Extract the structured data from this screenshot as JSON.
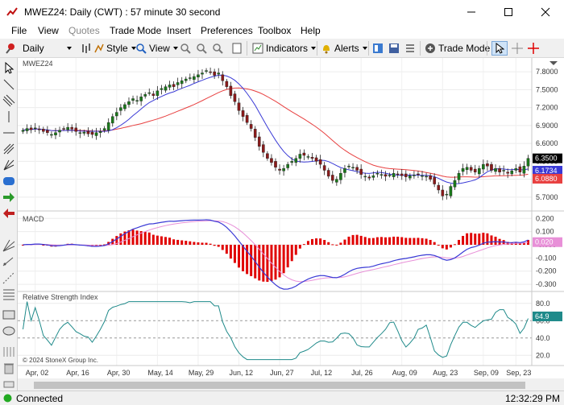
{
  "window": {
    "title": "MWEZ24: Daily (CWT) : 57 minute 30 second",
    "minimize": "—",
    "maximize": "☐",
    "close": "✕"
  },
  "menu": [
    "File",
    "View",
    "Quotes",
    "Trade Mode",
    "Insert",
    "Preferences",
    "Toolbox",
    "Help"
  ],
  "toolbar": {
    "period": "Daily",
    "style": "Style",
    "view": "View",
    "indicators": "Indicators",
    "alerts": "Alerts",
    "trade_mode": "Trade Mode"
  },
  "chart": {
    "symbol_label": "MWEZ24",
    "copyright": "© 2024 StoneX Group Inc.",
    "price_ticks": [
      "7.8000",
      "7.5000",
      "7.2000",
      "6.9000",
      "6.6000",
      "6.3000",
      "6.0000",
      "5.7000"
    ],
    "last_price": "6.3500",
    "ma_fast_value": "6.1734",
    "ma_slow_value": "6.0880",
    "macd_label": "MACD",
    "macd_ticks": [
      "0.200",
      "0.100",
      "-0.000",
      "-0.100",
      "-0.200",
      "-0.300"
    ],
    "macd_value": "0.020",
    "rsi_label": "Relative Strength Index",
    "rsi_ticks": [
      "80.0",
      "60.0",
      "40.0",
      "20.0"
    ],
    "rsi_value": "64.9",
    "date_labels": [
      "Apr, 02",
      "Apr, 16",
      "Apr, 30",
      "May, 14",
      "May, 29",
      "Jun, 12",
      "Jun, 27",
      "Jul, 12",
      "Jul, 26",
      "Aug, 09",
      "Aug, 23",
      "Sep, 09",
      "Sep, 23"
    ],
    "colors": {
      "up": "#1a7a1a",
      "down": "#8b1a1a",
      "ma_fast": "#3a3ad6",
      "ma_slow": "#e84040",
      "macd_line": "#3a3ad6",
      "macd_signal": "#e890d8",
      "macd_hist": "#e00000",
      "rsi": "#1f8a8a",
      "last_tag": "#000000"
    }
  },
  "chart_data": {
    "type": "candlestick",
    "closes": [
      6.82,
      6.85,
      6.83,
      6.86,
      6.84,
      6.8,
      6.78,
      6.75,
      6.78,
      6.82,
      6.85,
      6.87,
      6.84,
      6.8,
      6.78,
      6.79,
      6.76,
      6.75,
      6.78,
      6.8,
      6.85,
      6.95,
      7.05,
      7.12,
      7.2,
      7.25,
      7.3,
      7.35,
      7.32,
      7.38,
      7.42,
      7.45,
      7.4,
      7.48,
      7.52,
      7.55,
      7.58,
      7.55,
      7.62,
      7.65,
      7.68,
      7.7,
      7.72,
      7.75,
      7.78,
      7.82,
      7.8,
      7.74,
      7.78,
      7.65,
      7.55,
      7.4,
      7.3,
      7.15,
      7.05,
      6.95,
      6.85,
      6.7,
      6.55,
      6.45,
      6.35,
      6.28,
      6.2,
      6.15,
      6.18,
      6.25,
      6.3,
      6.35,
      6.42,
      6.4,
      6.38,
      6.35,
      6.3,
      6.25,
      6.15,
      6.05,
      5.98,
      6.0,
      6.1,
      6.18,
      6.22,
      6.2,
      6.15,
      6.08,
      6.05,
      6.02,
      6.06,
      6.1,
      6.08,
      6.05,
      6.07,
      6.1,
      6.08,
      6.06,
      6.04,
      6.06,
      6.07,
      6.08,
      6.06,
      6.05,
      6.0,
      5.92,
      5.82,
      5.72,
      5.75,
      5.88,
      5.98,
      6.1,
      6.18,
      6.2,
      6.15,
      6.12,
      6.18,
      6.25,
      6.22,
      6.15,
      6.18,
      6.12,
      6.15,
      6.1,
      6.14,
      6.18,
      6.12,
      6.22,
      6.35
    ],
    "ylim": [
      5.55,
      7.95
    ],
    "macd_ylim": [
      -0.33,
      0.22
    ],
    "rsi_ylim": [
      10,
      90
    ]
  }
}
